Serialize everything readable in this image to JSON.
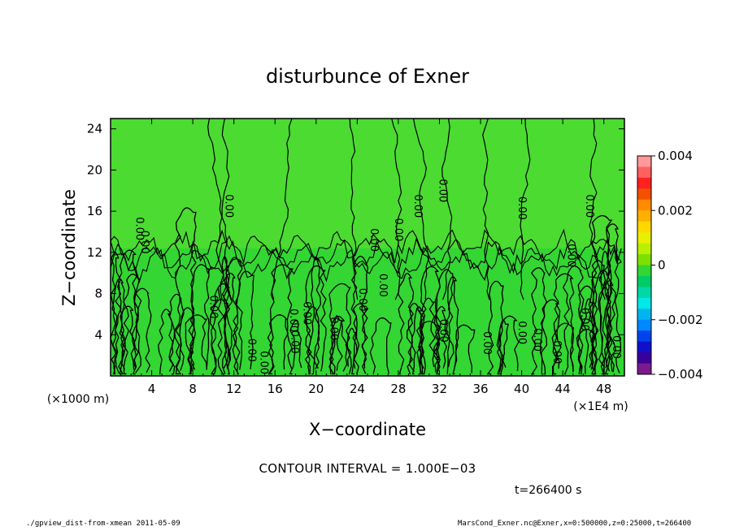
{
  "chart_data": {
    "type": "heatmap",
    "title": "disturbunce of Exner",
    "xlabel": "X−coordinate",
    "ylabel": "Z−coordinate",
    "x_unit_label": "(×1E4 m)",
    "y_unit_label": "(×1000 m)",
    "x_ticks": [
      "4",
      "8",
      "12",
      "16",
      "20",
      "24",
      "28",
      "32",
      "36",
      "40",
      "44",
      "48"
    ],
    "y_ticks": [
      "4",
      "8",
      "12",
      "16",
      "20",
      "24"
    ],
    "xlim": [
      0,
      50
    ],
    "ylim": [
      0,
      25
    ],
    "colorbar": {
      "min": -0.004,
      "max": 0.004,
      "labels": [
        "0.004",
        "0.002",
        "0",
        "−0.002",
        "−0.004"
      ],
      "colors": [
        "#ff9999",
        "#ff6060",
        "#ff2020",
        "#f55000",
        "#ff8c00",
        "#ffb000",
        "#ffd800",
        "#e6f000",
        "#b8f000",
        "#7ee000",
        "#33d633",
        "#00cc66",
        "#00d8a8",
        "#00e8e8",
        "#00b4f0",
        "#0088ff",
        "#0044ee",
        "#1010cc",
        "#3a0099",
        "#7a1a8c"
      ]
    },
    "contour_interval_text": "CONTOUR INTERVAL = 1.000E−03",
    "time_text": "t=266400 s",
    "contour_labels": [
      "0.00",
      "0.00",
      "0.00",
      "0.00",
      "0.00",
      "0.00",
      "0.00",
      "0.00",
      "0.00",
      "0.00",
      "0.00",
      "0.00",
      "0.00",
      "0.00",
      "0.00",
      "0.00",
      "0.00",
      "0.00",
      "0.00",
      "0.00",
      "0.00",
      "0.00",
      "0.00",
      "0.00",
      "0.00",
      "0.00"
    ]
  },
  "footer": {
    "left": "./gpview_dist-from-xmean  2011-05-09",
    "right": "MarsCond_Exner.nc@Exner,x=0:500000,z=0:25000,t=266400"
  }
}
